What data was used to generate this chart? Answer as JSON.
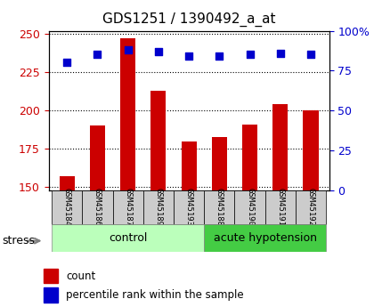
{
  "title": "GDS1251 / 1390492_a_at",
  "samples": [
    "GSM45184",
    "GSM45186",
    "GSM45187",
    "GSM45189",
    "GSM45193",
    "GSM45188",
    "GSM45190",
    "GSM45191",
    "GSM45192"
  ],
  "counts": [
    157,
    190,
    247,
    213,
    180,
    183,
    191,
    204,
    200
  ],
  "percentiles": [
    80,
    85,
    88,
    87,
    84,
    84,
    85,
    86,
    85
  ],
  "bar_color": "#cc0000",
  "dot_color": "#0000cc",
  "ylim_left": [
    148,
    252
  ],
  "ylim_right": [
    0,
    100
  ],
  "yticks_left": [
    150,
    175,
    200,
    225,
    250
  ],
  "yticks_right": [
    0,
    25,
    50,
    75,
    100
  ],
  "label_bg_color": "#cccccc",
  "control_bg": "#bbffbb",
  "hypo_bg": "#44cc44",
  "stress_label": "stress",
  "legend_count": "count",
  "legend_pct": "percentile rank within the sample",
  "control_samples": 5,
  "hypo_samples": 4
}
